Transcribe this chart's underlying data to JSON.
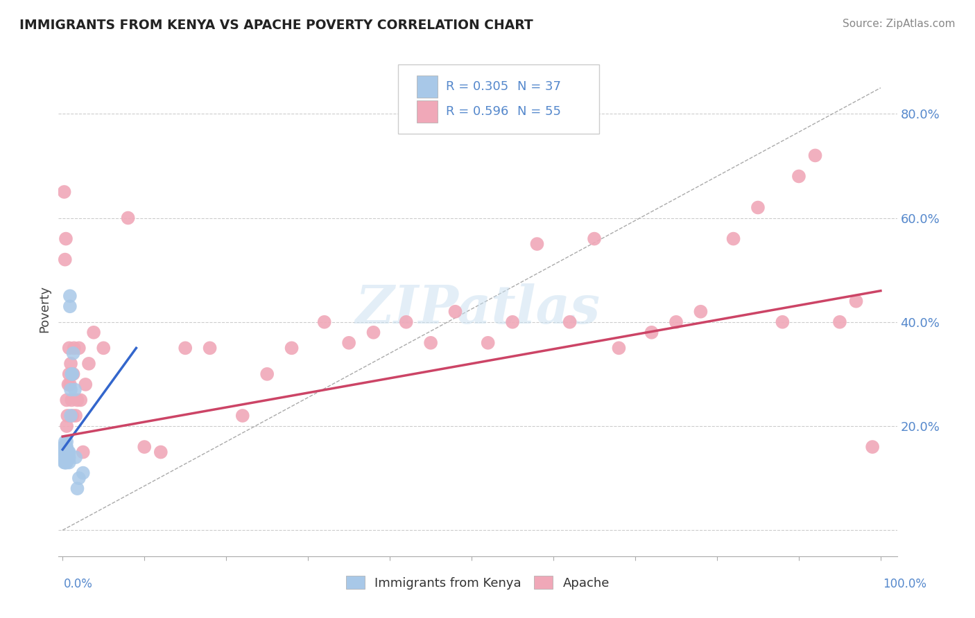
{
  "title": "IMMIGRANTS FROM KENYA VS APACHE POVERTY CORRELATION CHART",
  "source": "Source: ZipAtlas.com",
  "ylabel": "Poverty",
  "yticks": [
    0.0,
    0.2,
    0.4,
    0.6,
    0.8
  ],
  "ytick_labels": [
    "",
    "20.0%",
    "40.0%",
    "60.0%",
    "80.0%"
  ],
  "legend_r1": "R = 0.305",
  "legend_n1": "N = 37",
  "legend_r2": "R = 0.596",
  "legend_n2": "N = 55",
  "watermark": "ZIPatlas",
  "blue_color": "#a8c8e8",
  "pink_color": "#f0a8b8",
  "blue_line_color": "#3366cc",
  "pink_line_color": "#cc4466",
  "blue_scatter_x": [
    0.001,
    0.001,
    0.002,
    0.002,
    0.002,
    0.003,
    0.003,
    0.003,
    0.003,
    0.003,
    0.004,
    0.004,
    0.004,
    0.004,
    0.005,
    0.005,
    0.005,
    0.005,
    0.006,
    0.006,
    0.007,
    0.007,
    0.008,
    0.008,
    0.008,
    0.009,
    0.009,
    0.01,
    0.01,
    0.011,
    0.012,
    0.013,
    0.015,
    0.016,
    0.018,
    0.02,
    0.025
  ],
  "blue_scatter_y": [
    0.14,
    0.16,
    0.13,
    0.15,
    0.16,
    0.13,
    0.14,
    0.15,
    0.16,
    0.17,
    0.13,
    0.14,
    0.15,
    0.16,
    0.13,
    0.15,
    0.16,
    0.17,
    0.14,
    0.15,
    0.14,
    0.15,
    0.13,
    0.14,
    0.15,
    0.43,
    0.45,
    0.22,
    0.27,
    0.3,
    0.3,
    0.34,
    0.27,
    0.14,
    0.08,
    0.1,
    0.11
  ],
  "pink_scatter_x": [
    0.002,
    0.003,
    0.004,
    0.005,
    0.005,
    0.006,
    0.007,
    0.008,
    0.008,
    0.009,
    0.01,
    0.011,
    0.012,
    0.013,
    0.014,
    0.016,
    0.018,
    0.02,
    0.022,
    0.025,
    0.028,
    0.032,
    0.038,
    0.05,
    0.08,
    0.1,
    0.12,
    0.15,
    0.18,
    0.22,
    0.25,
    0.28,
    0.32,
    0.35,
    0.38,
    0.42,
    0.45,
    0.48,
    0.52,
    0.55,
    0.58,
    0.62,
    0.65,
    0.68,
    0.72,
    0.75,
    0.78,
    0.82,
    0.85,
    0.88,
    0.9,
    0.92,
    0.95,
    0.97,
    0.99
  ],
  "pink_scatter_y": [
    0.65,
    0.52,
    0.56,
    0.2,
    0.25,
    0.22,
    0.28,
    0.3,
    0.35,
    0.28,
    0.32,
    0.25,
    0.22,
    0.3,
    0.35,
    0.22,
    0.25,
    0.35,
    0.25,
    0.15,
    0.28,
    0.32,
    0.38,
    0.35,
    0.6,
    0.16,
    0.15,
    0.35,
    0.35,
    0.22,
    0.3,
    0.35,
    0.4,
    0.36,
    0.38,
    0.4,
    0.36,
    0.42,
    0.36,
    0.4,
    0.55,
    0.4,
    0.56,
    0.35,
    0.38,
    0.4,
    0.42,
    0.56,
    0.62,
    0.4,
    0.68,
    0.72,
    0.4,
    0.44,
    0.16
  ],
  "blue_line_x": [
    0.0,
    0.09
  ],
  "blue_line_y": [
    0.155,
    0.35
  ],
  "pink_line_x": [
    0.0,
    1.0
  ],
  "pink_line_y": [
    0.18,
    0.46
  ],
  "diag_line_x": [
    0.0,
    1.0
  ],
  "diag_line_y": [
    0.0,
    0.85
  ],
  "xlim": [
    -0.005,
    1.02
  ],
  "ylim": [
    -0.05,
    0.9
  ]
}
